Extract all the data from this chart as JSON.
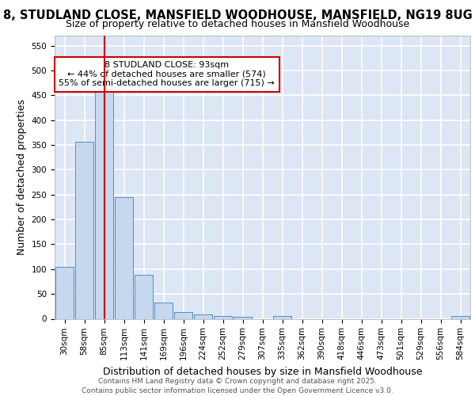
{
  "title": "8, STUDLAND CLOSE, MANSFIELD WOODHOUSE, MANSFIELD, NG19 8UG",
  "subtitle": "Size of property relative to detached houses in Mansfield Woodhouse",
  "xlabel": "Distribution of detached houses by size in Mansfield Woodhouse",
  "ylabel": "Number of detached properties",
  "footer": "Contains HM Land Registry data © Crown copyright and database right 2025.\nContains public sector information licensed under the Open Government Licence v3.0.",
  "bar_labels": [
    "30sqm",
    "58sqm",
    "85sqm",
    "113sqm",
    "141sqm",
    "169sqm",
    "196sqm",
    "224sqm",
    "252sqm",
    "279sqm",
    "307sqm",
    "335sqm",
    "362sqm",
    "390sqm",
    "418sqm",
    "446sqm",
    "473sqm",
    "501sqm",
    "529sqm",
    "556sqm",
    "584sqm"
  ],
  "bar_values": [
    105,
    357,
    457,
    245,
    89,
    32,
    13,
    9,
    5,
    4,
    0,
    5,
    0,
    0,
    0,
    0,
    0,
    0,
    0,
    0,
    5
  ],
  "bar_color": "#c5d8ee",
  "bar_edge_color": "#5590c0",
  "background_color": "#dce6f5",
  "grid_color": "#ffffff",
  "ylim": [
    0,
    570
  ],
  "yticks": [
    0,
    50,
    100,
    150,
    200,
    250,
    300,
    350,
    400,
    450,
    500,
    550
  ],
  "property_label": "8 STUDLAND CLOSE: 93sqm",
  "annotation_line1": "← 44% of detached houses are smaller (574)",
  "annotation_line2": "55% of semi-detached houses are larger (715) →",
  "vline_color": "#cc0000",
  "annotation_box_color": "#cc0000",
  "annotation_bg": "#ffffff",
  "title_fontsize": 10.5,
  "subtitle_fontsize": 9,
  "axis_label_fontsize": 9,
  "tick_fontsize": 7.5,
  "annotation_fontsize": 8,
  "footer_fontsize": 6.5,
  "vline_x": 2.0
}
